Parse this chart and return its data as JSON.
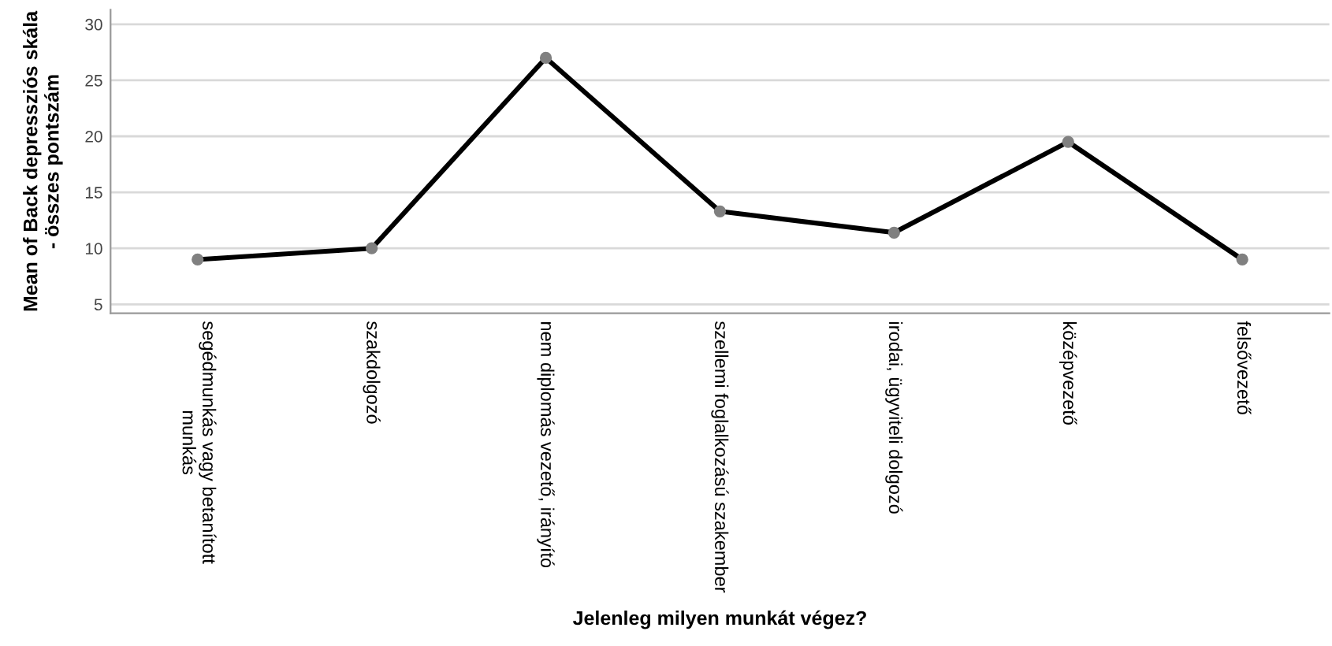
{
  "chart_data": {
    "type": "line",
    "xlabel": "Jelenleg milyen munkát végez?",
    "ylabel": "Mean of Back depressziós skála\n- összes pontszám",
    "categories": [
      "segédmunkás vagy betanított\nmunkás",
      "szakdolgozó",
      "nem diplomás vezető, irányító",
      "szellemi foglalkozású szakember",
      "irodai, ügyviteli dolgozó",
      "középvezető",
      "felsővezető"
    ],
    "series": [
      {
        "color": "#000000",
        "values": [
          9.0,
          10.0,
          27.0,
          13.3,
          11.4,
          19.5,
          9.0
        ]
      }
    ],
    "ylim": [
      4.2,
      31.3
    ],
    "yticks": [
      5,
      10,
      15,
      20,
      25,
      30
    ],
    "grid": "y",
    "marker": "circle",
    "line_style": "solid"
  }
}
